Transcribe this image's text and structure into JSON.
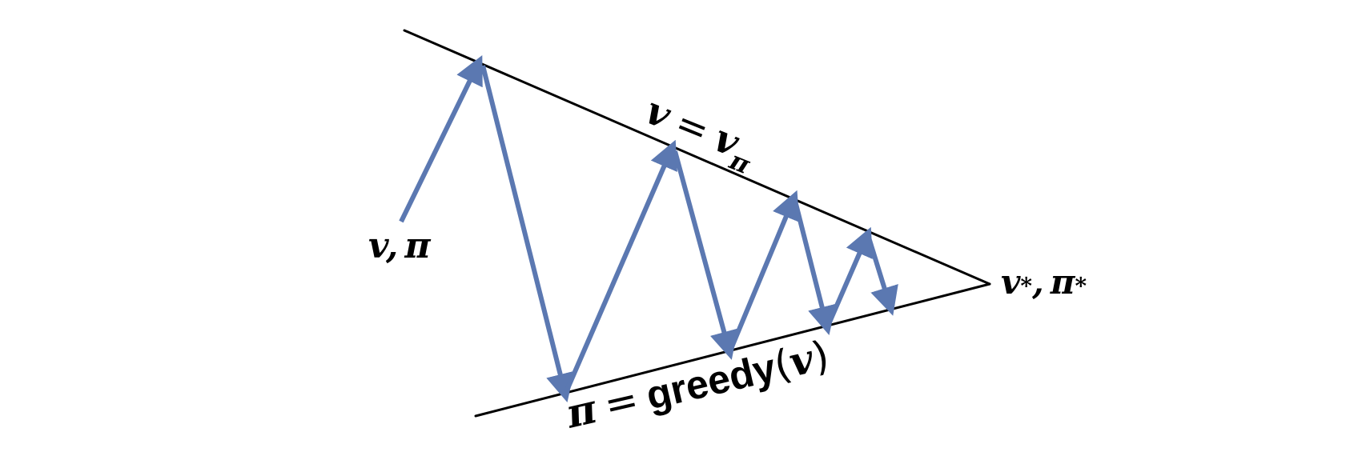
{
  "colors": {
    "background": "#ffffff",
    "line": "#000000",
    "arrow": "#5b78b1"
  },
  "labels": {
    "start": {
      "v": "v",
      "comma": ",",
      "pi": "π"
    },
    "upper": {
      "v": "v",
      "equals": "=",
      "v_sub_base": "v",
      "v_sub": "π"
    },
    "lower": {
      "pi": "π",
      "equals": "=",
      "word": "greedy",
      "open_paren": "(",
      "v": "v",
      "close_paren": ")"
    },
    "end": {
      "v": "v",
      "v_sub": "*",
      "comma": ",",
      "pi": "π",
      "pi_sub": "*"
    }
  }
}
